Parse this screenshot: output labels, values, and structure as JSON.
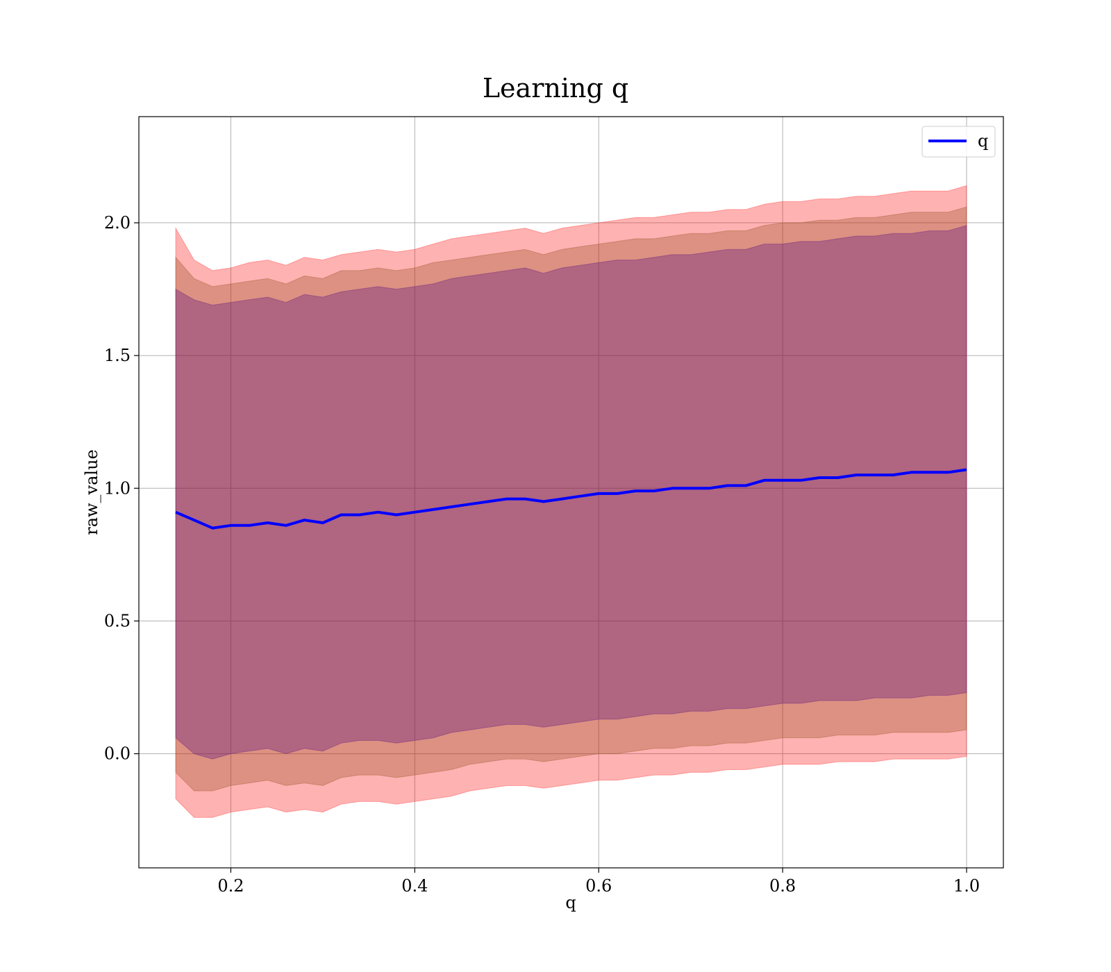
{
  "chart_data": {
    "type": "line",
    "title": "Learning q",
    "xlabel": "q",
    "ylabel": "raw_value",
    "xlim": [
      0.1,
      1.04
    ],
    "ylim": [
      -0.43,
      2.4
    ],
    "x_ticks": [
      0.2,
      0.4,
      0.6,
      0.8,
      1.0
    ],
    "x_tick_labels": [
      "0.2",
      "0.4",
      "0.6",
      "0.8",
      "1.0"
    ],
    "y_ticks": [
      0.0,
      0.5,
      1.0,
      1.5,
      2.0
    ],
    "y_tick_labels": [
      "0.0",
      "0.5",
      "1.0",
      "1.5",
      "2.0"
    ],
    "grid": true,
    "legend_position": "top-right",
    "series": [
      {
        "name": "q",
        "color": "#0000ff",
        "x": [
          0.14,
          0.16,
          0.18,
          0.2,
          0.22,
          0.24,
          0.26,
          0.28,
          0.3,
          0.32,
          0.34,
          0.36,
          0.38,
          0.4,
          0.42,
          0.44,
          0.46,
          0.48,
          0.5,
          0.52,
          0.54,
          0.56,
          0.58,
          0.6,
          0.62,
          0.64,
          0.66,
          0.68,
          0.7,
          0.72,
          0.74,
          0.76,
          0.78,
          0.8,
          0.82,
          0.84,
          0.86,
          0.88,
          0.9,
          0.92,
          0.94,
          0.96,
          0.98,
          1.0
        ],
        "mean": [
          0.91,
          0.88,
          0.85,
          0.86,
          0.86,
          0.87,
          0.86,
          0.88,
          0.87,
          0.9,
          0.9,
          0.91,
          0.9,
          0.91,
          0.92,
          0.93,
          0.94,
          0.95,
          0.96,
          0.96,
          0.95,
          0.96,
          0.97,
          0.98,
          0.98,
          0.99,
          0.99,
          1.0,
          1.0,
          1.0,
          1.01,
          1.01,
          1.03,
          1.03,
          1.03,
          1.04,
          1.04,
          1.05,
          1.05,
          1.05,
          1.06,
          1.06,
          1.06,
          1.07
        ]
      }
    ],
    "bands": [
      {
        "color": "#ff0000",
        "opacity": 0.3,
        "upper": [
          1.98,
          1.86,
          1.82,
          1.83,
          1.85,
          1.86,
          1.84,
          1.87,
          1.86,
          1.88,
          1.89,
          1.9,
          1.89,
          1.9,
          1.92,
          1.94,
          1.95,
          1.96,
          1.97,
          1.98,
          1.96,
          1.98,
          1.99,
          2.0,
          2.01,
          2.02,
          2.02,
          2.03,
          2.04,
          2.04,
          2.05,
          2.05,
          2.07,
          2.08,
          2.08,
          2.09,
          2.09,
          2.1,
          2.1,
          2.11,
          2.12,
          2.12,
          2.12,
          2.14
        ],
        "lower": [
          -0.17,
          -0.24,
          -0.24,
          -0.22,
          -0.21,
          -0.2,
          -0.22,
          -0.21,
          -0.22,
          -0.19,
          -0.18,
          -0.18,
          -0.19,
          -0.18,
          -0.17,
          -0.16,
          -0.14,
          -0.13,
          -0.12,
          -0.12,
          -0.13,
          -0.12,
          -0.11,
          -0.1,
          -0.1,
          -0.09,
          -0.08,
          -0.08,
          -0.07,
          -0.07,
          -0.06,
          -0.06,
          -0.05,
          -0.04,
          -0.04,
          -0.04,
          -0.03,
          -0.03,
          -0.03,
          -0.02,
          -0.02,
          -0.02,
          -0.02,
          -0.01
        ]
      },
      {
        "color": "#8b4513",
        "opacity": 0.3,
        "upper": [
          1.87,
          1.79,
          1.76,
          1.77,
          1.78,
          1.79,
          1.77,
          1.8,
          1.79,
          1.82,
          1.82,
          1.83,
          1.82,
          1.83,
          1.85,
          1.86,
          1.87,
          1.88,
          1.89,
          1.9,
          1.88,
          1.9,
          1.91,
          1.92,
          1.93,
          1.94,
          1.94,
          1.95,
          1.96,
          1.96,
          1.97,
          1.97,
          1.99,
          2.0,
          2.0,
          2.01,
          2.01,
          2.02,
          2.02,
          2.03,
          2.04,
          2.04,
          2.04,
          2.06
        ],
        "lower": [
          -0.07,
          -0.14,
          -0.14,
          -0.12,
          -0.11,
          -0.1,
          -0.12,
          -0.11,
          -0.12,
          -0.09,
          -0.08,
          -0.08,
          -0.09,
          -0.08,
          -0.07,
          -0.06,
          -0.04,
          -0.03,
          -0.02,
          -0.02,
          -0.03,
          -0.02,
          -0.01,
          0.0,
          0.0,
          0.01,
          0.02,
          0.02,
          0.03,
          0.03,
          0.04,
          0.04,
          0.05,
          0.06,
          0.06,
          0.06,
          0.07,
          0.07,
          0.07,
          0.08,
          0.08,
          0.08,
          0.08,
          0.09
        ]
      },
      {
        "color": "#4b0082",
        "opacity": 0.3,
        "upper": [
          1.75,
          1.71,
          1.69,
          1.7,
          1.71,
          1.72,
          1.7,
          1.73,
          1.72,
          1.74,
          1.75,
          1.76,
          1.75,
          1.76,
          1.77,
          1.79,
          1.8,
          1.81,
          1.82,
          1.83,
          1.81,
          1.83,
          1.84,
          1.85,
          1.86,
          1.86,
          1.87,
          1.88,
          1.88,
          1.89,
          1.9,
          1.9,
          1.92,
          1.92,
          1.93,
          1.93,
          1.94,
          1.95,
          1.95,
          1.96,
          1.96,
          1.97,
          1.97,
          1.99
        ],
        "lower": [
          0.06,
          0.0,
          -0.02,
          0.0,
          0.01,
          0.02,
          0.0,
          0.02,
          0.01,
          0.04,
          0.05,
          0.05,
          0.04,
          0.05,
          0.06,
          0.08,
          0.09,
          0.1,
          0.11,
          0.11,
          0.1,
          0.11,
          0.12,
          0.13,
          0.13,
          0.14,
          0.15,
          0.15,
          0.16,
          0.16,
          0.17,
          0.17,
          0.18,
          0.19,
          0.19,
          0.2,
          0.2,
          0.2,
          0.21,
          0.21,
          0.21,
          0.22,
          0.22,
          0.23
        ]
      }
    ]
  }
}
